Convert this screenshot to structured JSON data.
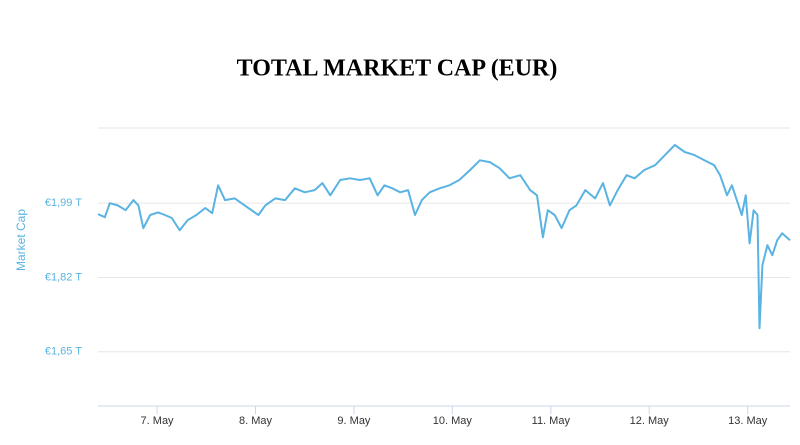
{
  "chart_data": {
    "type": "line",
    "title": "TOTAL MARKET CAP (EUR)",
    "y_label": "Market Cap",
    "series": [
      {
        "name": "Total Market Cap",
        "color": "#5ab3e2",
        "x": [
          6.4,
          6.47,
          6.52,
          6.6,
          6.68,
          6.76,
          6.81,
          6.86,
          6.93,
          7.01,
          7.08,
          7.15,
          7.23,
          7.31,
          7.4,
          7.49,
          7.56,
          7.62,
          7.69,
          7.79,
          7.89,
          8.03,
          8.1,
          8.2,
          8.3,
          8.4,
          8.5,
          8.6,
          8.68,
          8.76,
          8.86,
          8.96,
          9.06,
          9.16,
          9.24,
          9.31,
          9.39,
          9.47,
          9.55,
          9.62,
          9.69,
          9.77,
          9.87,
          9.97,
          10.07,
          10.18,
          10.28,
          10.38,
          10.48,
          10.58,
          10.69,
          10.79,
          10.86,
          10.92,
          10.97,
          11.04,
          11.11,
          11.19,
          11.26,
          11.35,
          11.45,
          11.53,
          11.6,
          11.68,
          11.77,
          11.85,
          11.95,
          12.06,
          12.16,
          12.26,
          12.36,
          12.46,
          12.56,
          12.66,
          12.72,
          12.79,
          12.84,
          12.89,
          12.94,
          12.98,
          13.02,
          13.06,
          13.1,
          13.12,
          13.15,
          13.2,
          13.25,
          13.3,
          13.35,
          13.43
        ],
        "values": [
          1.965,
          1.958,
          1.99,
          1.985,
          1.974,
          1.997,
          1.985,
          1.933,
          1.963,
          1.969,
          1.963,
          1.956,
          1.928,
          1.951,
          1.963,
          1.979,
          1.967,
          2.031,
          1.997,
          2.001,
          1.985,
          1.963,
          1.985,
          2.001,
          1.997,
          2.024,
          2.015,
          2.02,
          2.036,
          2.008,
          2.043,
          2.047,
          2.043,
          2.047,
          2.008,
          2.031,
          2.024,
          2.015,
          2.02,
          1.963,
          1.997,
          2.015,
          2.024,
          2.031,
          2.043,
          2.066,
          2.088,
          2.084,
          2.07,
          2.047,
          2.054,
          2.02,
          2.008,
          1.912,
          1.974,
          1.963,
          1.933,
          1.974,
          1.985,
          2.02,
          2.001,
          2.036,
          1.985,
          2.02,
          2.054,
          2.047,
          2.066,
          2.077,
          2.1,
          2.123,
          2.107,
          2.1,
          2.088,
          2.077,
          2.054,
          2.008,
          2.031,
          1.997,
          1.963,
          2.008,
          1.898,
          1.974,
          1.963,
          1.704,
          1.848,
          1.894,
          1.871,
          1.905,
          1.921,
          1.905
        ]
      }
    ],
    "xlim": [
      6.4,
      13.43
    ],
    "xticks": [
      {
        "value": 7,
        "label": "7. May"
      },
      {
        "value": 8,
        "label": "8. May"
      },
      {
        "value": 9,
        "label": "9. May"
      },
      {
        "value": 10,
        "label": "10. May"
      },
      {
        "value": 11,
        "label": "11. May"
      },
      {
        "value": 12,
        "label": "12. May"
      },
      {
        "value": 13,
        "label": "13. May"
      }
    ],
    "ylim": [
      1.526,
      2.162
    ],
    "yticks": [
      {
        "value": 1.65,
        "label": "€1,65 T"
      },
      {
        "value": 1.82,
        "label": "€1,82 T"
      },
      {
        "value": 1.99,
        "label": "€1,99 T"
      }
    ],
    "grid": true
  }
}
